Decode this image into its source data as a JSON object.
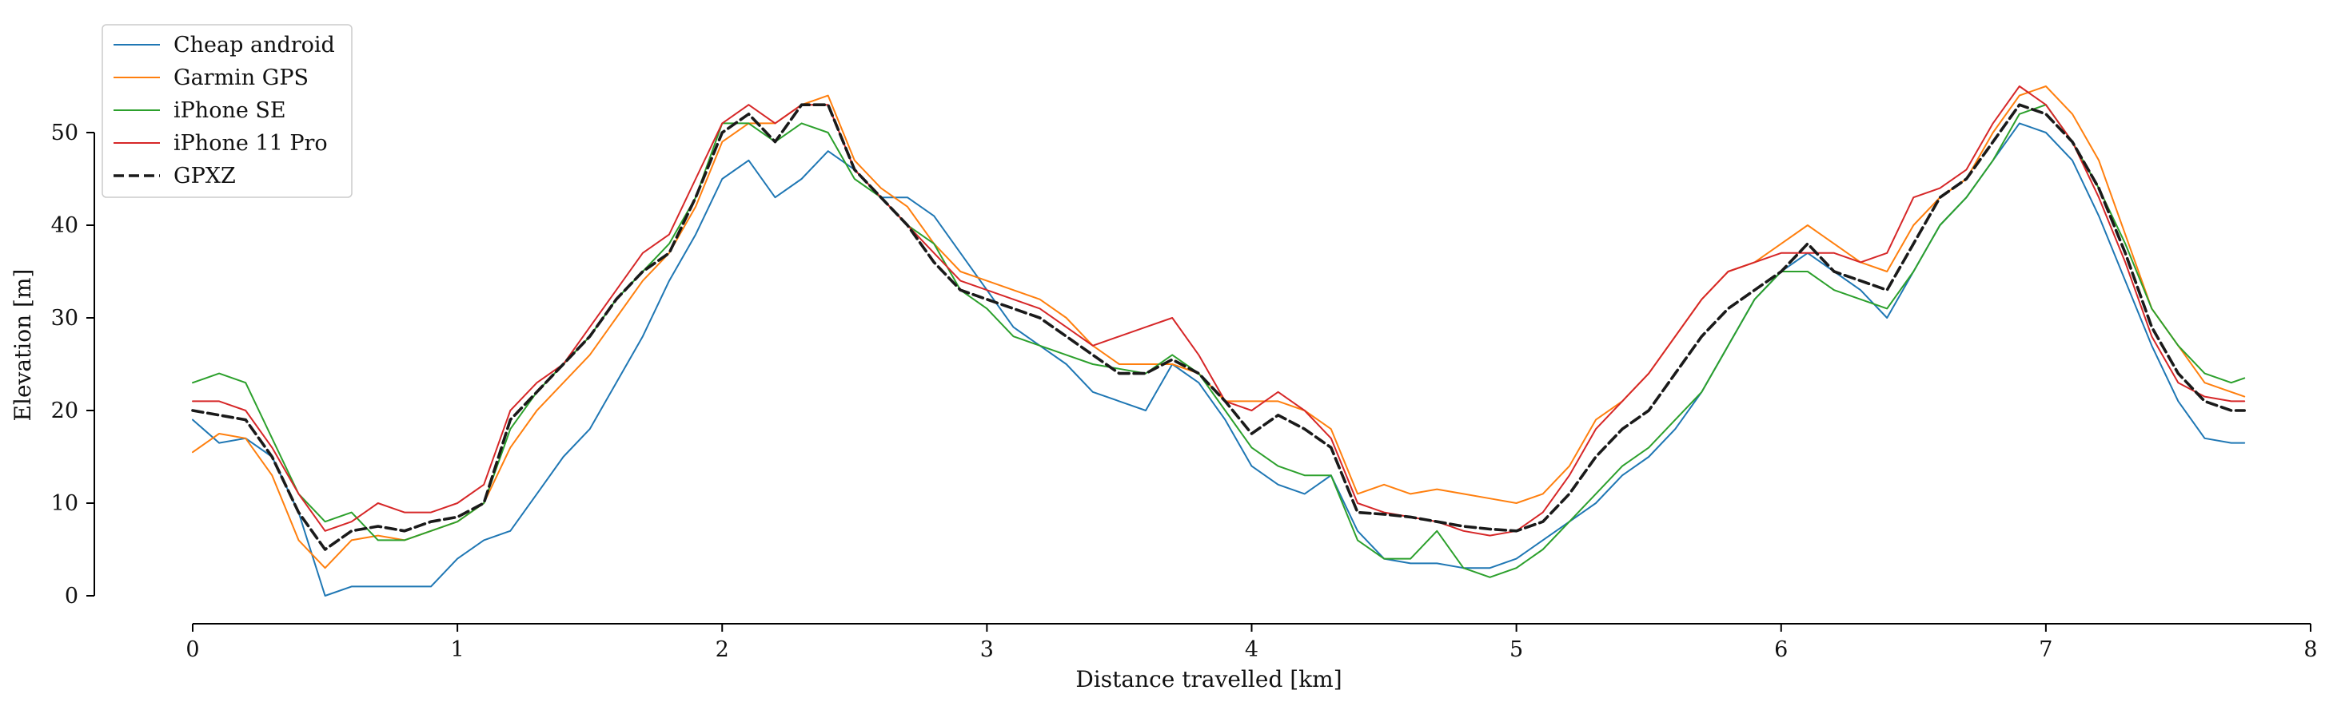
{
  "chart_data": {
    "type": "line",
    "title": "",
    "xlabel": "Distance travelled [km]",
    "ylabel": "Elevation [m]",
    "xlim": [
      0,
      8
    ],
    "ylim": [
      0,
      55
    ],
    "x_ticks": [
      0,
      1,
      2,
      3,
      4,
      5,
      6,
      7,
      8
    ],
    "y_ticks": [
      0,
      10,
      20,
      30,
      40,
      50
    ],
    "grid": false,
    "legend_position": "top-left",
    "series": [
      {
        "name": "Cheap android",
        "color": "#1f77b4",
        "style": "solid",
        "x": [
          0,
          0.1,
          0.2,
          0.3,
          0.4,
          0.5,
          0.6,
          0.7,
          0.8,
          0.9,
          1.0,
          1.1,
          1.2,
          1.3,
          1.4,
          1.5,
          1.6,
          1.7,
          1.8,
          1.9,
          2.0,
          2.1,
          2.2,
          2.3,
          2.4,
          2.5,
          2.6,
          2.7,
          2.8,
          2.9,
          3.0,
          3.1,
          3.2,
          3.3,
          3.4,
          3.5,
          3.6,
          3.7,
          3.8,
          3.9,
          4.0,
          4.1,
          4.2,
          4.3,
          4.4,
          4.5,
          4.6,
          4.7,
          4.8,
          4.9,
          5.0,
          5.1,
          5.2,
          5.3,
          5.4,
          5.5,
          5.6,
          5.7,
          5.8,
          5.9,
          6.0,
          6.1,
          6.2,
          6.3,
          6.4,
          6.5,
          6.6,
          6.7,
          6.8,
          6.9,
          7.0,
          7.1,
          7.2,
          7.3,
          7.4,
          7.5,
          7.6,
          7.7,
          7.75
        ],
        "values": [
          19,
          16.5,
          17,
          15,
          9,
          0,
          1,
          1,
          1,
          1,
          4,
          6,
          7,
          11,
          15,
          18,
          23,
          28,
          34,
          39,
          45,
          47,
          43,
          45,
          48,
          46,
          43,
          43,
          41,
          37,
          33,
          29,
          27,
          25,
          22,
          21,
          20,
          25,
          23,
          19,
          14,
          12,
          11,
          13,
          7,
          4,
          3.5,
          3.5,
          3,
          3,
          4,
          6,
          8,
          10,
          13,
          15,
          18,
          22,
          27,
          32,
          35,
          37,
          35,
          33,
          30,
          35,
          40,
          43,
          47,
          51,
          50,
          47,
          41,
          34,
          27,
          21,
          17,
          16.5,
          16.5
        ]
      },
      {
        "name": "Garmin GPS",
        "color": "#ff7f0e",
        "style": "solid",
        "x": [
          0,
          0.1,
          0.2,
          0.3,
          0.4,
          0.5,
          0.6,
          0.7,
          0.8,
          0.9,
          1.0,
          1.1,
          1.2,
          1.3,
          1.4,
          1.5,
          1.6,
          1.7,
          1.8,
          1.9,
          2.0,
          2.1,
          2.2,
          2.3,
          2.4,
          2.5,
          2.6,
          2.7,
          2.8,
          2.9,
          3.0,
          3.1,
          3.2,
          3.3,
          3.4,
          3.5,
          3.6,
          3.7,
          3.8,
          3.9,
          4.0,
          4.1,
          4.2,
          4.3,
          4.4,
          4.5,
          4.6,
          4.7,
          4.8,
          4.9,
          5.0,
          5.1,
          5.2,
          5.3,
          5.4,
          5.5,
          5.6,
          5.7,
          5.8,
          5.9,
          6.0,
          6.1,
          6.2,
          6.3,
          6.4,
          6.5,
          6.6,
          6.7,
          6.8,
          6.9,
          7.0,
          7.1,
          7.2,
          7.3,
          7.4,
          7.5,
          7.6,
          7.7,
          7.75
        ],
        "values": [
          15.5,
          17.5,
          17,
          13,
          6,
          3,
          6,
          6.5,
          6,
          7,
          8,
          10,
          16,
          20,
          23,
          26,
          30,
          34,
          37,
          42,
          49,
          51,
          51,
          53,
          54,
          47,
          44,
          42,
          38,
          35,
          34,
          33,
          32,
          30,
          27,
          25,
          25,
          25,
          24,
          21,
          21,
          21,
          20,
          18,
          11,
          12,
          11,
          11.5,
          11,
          10.5,
          10,
          11,
          14,
          19,
          21,
          24,
          28,
          32,
          35,
          36,
          38,
          40,
          38,
          36,
          35,
          40,
          43,
          45,
          50,
          54,
          55,
          52,
          47,
          39,
          31,
          27,
          23,
          22,
          21.5
        ]
      },
      {
        "name": "iPhone SE",
        "color": "#2ca02c",
        "style": "solid",
        "x": [
          0,
          0.1,
          0.2,
          0.3,
          0.4,
          0.5,
          0.6,
          0.7,
          0.8,
          0.9,
          1.0,
          1.1,
          1.2,
          1.3,
          1.4,
          1.5,
          1.6,
          1.7,
          1.8,
          1.9,
          2.0,
          2.1,
          2.2,
          2.3,
          2.4,
          2.5,
          2.6,
          2.7,
          2.8,
          2.9,
          3.0,
          3.1,
          3.2,
          3.3,
          3.4,
          3.5,
          3.6,
          3.7,
          3.8,
          3.9,
          4.0,
          4.1,
          4.2,
          4.3,
          4.4,
          4.5,
          4.6,
          4.7,
          4.8,
          4.9,
          5.0,
          5.1,
          5.2,
          5.3,
          5.4,
          5.5,
          5.6,
          5.7,
          5.8,
          5.9,
          6.0,
          6.1,
          6.2,
          6.3,
          6.4,
          6.5,
          6.6,
          6.7,
          6.8,
          6.9,
          7.0,
          7.1,
          7.2,
          7.3,
          7.4,
          7.5,
          7.6,
          7.7,
          7.75
        ],
        "values": [
          23,
          24,
          23,
          17,
          11,
          8,
          9,
          6,
          6,
          7,
          8,
          10,
          18,
          22,
          25,
          28,
          32,
          35,
          38,
          43,
          51,
          51,
          49,
          51,
          50,
          45,
          43,
          40,
          38,
          33,
          31,
          28,
          27,
          26,
          25,
          24.5,
          24,
          26,
          24,
          20,
          16,
          14,
          13,
          13,
          6,
          4,
          4,
          7,
          3,
          2,
          3,
          5,
          8,
          11,
          14,
          16,
          19,
          22,
          27,
          32,
          35,
          35,
          33,
          32,
          31,
          35,
          40,
          43,
          47,
          52,
          53,
          49,
          44,
          38,
          31,
          27,
          24,
          23,
          23.5
        ]
      },
      {
        "name": "iPhone 11 Pro",
        "color": "#d62728",
        "style": "solid",
        "x": [
          0,
          0.1,
          0.2,
          0.3,
          0.4,
          0.5,
          0.6,
          0.7,
          0.8,
          0.9,
          1.0,
          1.1,
          1.2,
          1.3,
          1.4,
          1.5,
          1.6,
          1.7,
          1.8,
          1.9,
          2.0,
          2.1,
          2.2,
          2.3,
          2.4,
          2.5,
          2.6,
          2.7,
          2.8,
          2.9,
          3.0,
          3.1,
          3.2,
          3.3,
          3.4,
          3.5,
          3.6,
          3.7,
          3.8,
          3.9,
          4.0,
          4.1,
          4.2,
          4.3,
          4.4,
          4.5,
          4.6,
          4.7,
          4.8,
          4.9,
          5.0,
          5.1,
          5.2,
          5.3,
          5.4,
          5.5,
          5.6,
          5.7,
          5.8,
          5.9,
          6.0,
          6.1,
          6.2,
          6.3,
          6.4,
          6.5,
          6.6,
          6.7,
          6.8,
          6.9,
          7.0,
          7.1,
          7.2,
          7.3,
          7.4,
          7.5,
          7.6,
          7.7,
          7.75
        ],
        "values": [
          21,
          21,
          20,
          16,
          11,
          7,
          8,
          10,
          9,
          9,
          10,
          12,
          20,
          23,
          25,
          29,
          33,
          37,
          39,
          45,
          51,
          53,
          51,
          53,
          53,
          46,
          43,
          40,
          37,
          34,
          33,
          32,
          31,
          29,
          27,
          28,
          29,
          30,
          26,
          21,
          20,
          22,
          20,
          17,
          10,
          9,
          8.5,
          8,
          7,
          6.5,
          7,
          9,
          13,
          18,
          21,
          24,
          28,
          32,
          35,
          36,
          37,
          37,
          37,
          36,
          37,
          43,
          44,
          46,
          51,
          55,
          53,
          49,
          43,
          36,
          28,
          23,
          21.5,
          21,
          21
        ]
      },
      {
        "name": "GPXZ",
        "color": "#1a1a1a",
        "style": "dashed",
        "x": [
          0,
          0.1,
          0.2,
          0.3,
          0.4,
          0.5,
          0.6,
          0.7,
          0.8,
          0.9,
          1.0,
          1.1,
          1.2,
          1.3,
          1.4,
          1.5,
          1.6,
          1.7,
          1.8,
          1.9,
          2.0,
          2.1,
          2.2,
          2.3,
          2.4,
          2.5,
          2.6,
          2.7,
          2.8,
          2.9,
          3.0,
          3.1,
          3.2,
          3.3,
          3.4,
          3.5,
          3.6,
          3.7,
          3.8,
          3.9,
          4.0,
          4.1,
          4.2,
          4.3,
          4.4,
          4.5,
          4.6,
          4.7,
          4.8,
          4.9,
          5.0,
          5.1,
          5.2,
          5.3,
          5.4,
          5.5,
          5.6,
          5.7,
          5.8,
          5.9,
          6.0,
          6.1,
          6.2,
          6.3,
          6.4,
          6.5,
          6.6,
          6.7,
          6.8,
          6.9,
          7.0,
          7.1,
          7.2,
          7.3,
          7.4,
          7.5,
          7.6,
          7.7,
          7.75
        ],
        "values": [
          20,
          19.5,
          19,
          15,
          9,
          5,
          7,
          7.5,
          7,
          8,
          8.5,
          10,
          19,
          22,
          25,
          28,
          32,
          35,
          37,
          43,
          50,
          52,
          49,
          53,
          53,
          46,
          43,
          40,
          36,
          33,
          32,
          31,
          30,
          28,
          26,
          24,
          24,
          25.5,
          24,
          21,
          17.5,
          19.5,
          18,
          16,
          9,
          8.8,
          8.5,
          8,
          7.5,
          7.2,
          7,
          8,
          11,
          15,
          18,
          20,
          24,
          28,
          31,
          33,
          35,
          38,
          35,
          34,
          33,
          38,
          43,
          45,
          49,
          53,
          52,
          49,
          44,
          37,
          29,
          24,
          21,
          20,
          20
        ]
      }
    ]
  }
}
